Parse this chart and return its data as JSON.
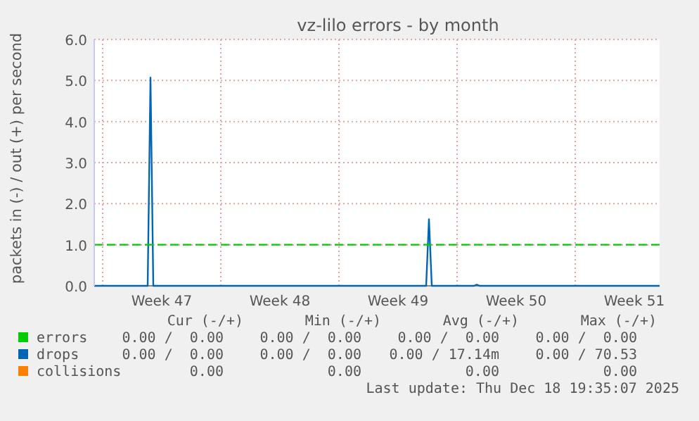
{
  "chart_data": {
    "type": "line",
    "title": "vz-lilo errors - by month",
    "ylabel": "packets in (-) / out (+) per second",
    "categories": [
      null,
      null,
      null,
      null,
      null,
      null,
      null,
      null,
      null,
      null,
      null,
      null,
      null,
      null,
      null,
      null,
      null,
      null,
      null,
      null,
      null,
      null,
      null,
      null,
      "Week 47",
      null,
      null,
      null,
      null,
      null,
      null,
      null,
      null,
      null,
      null,
      null,
      null,
      null,
      null,
      null,
      null,
      null,
      null,
      null,
      null,
      null,
      null,
      null,
      null,
      null,
      null,
      null,
      null,
      null,
      null,
      null,
      null,
      null,
      null,
      null,
      null,
      null,
      null,
      null,
      null,
      null,
      "Week 48",
      null,
      null,
      null,
      null,
      null,
      null,
      null,
      null,
      null,
      null,
      null,
      null,
      null,
      null,
      null,
      null,
      null,
      null,
      null,
      null,
      null,
      null,
      null,
      null,
      null,
      null,
      null,
      null,
      null,
      null,
      null,
      null,
      null,
      null,
      null,
      null,
      null,
      null,
      null,
      null,
      null,
      "Week 49",
      null,
      null,
      null,
      null,
      null,
      null,
      null,
      null,
      null,
      null,
      null,
      null,
      null,
      null,
      null,
      null,
      null,
      null,
      null,
      null,
      null,
      null,
      null,
      null,
      null,
      null,
      null,
      null,
      null,
      null,
      null,
      null,
      null,
      null,
      null,
      null,
      null,
      null,
      null,
      null,
      null,
      "Week 50",
      null,
      null,
      null,
      null,
      null,
      null,
      null,
      null,
      null,
      null,
      null,
      null,
      null,
      null,
      null,
      null,
      null,
      null,
      null,
      null,
      null,
      null,
      null,
      null,
      null,
      null,
      null,
      null,
      null,
      null,
      null,
      null,
      null,
      null,
      null,
      null,
      null,
      null,
      null,
      null,
      null,
      "Week 51",
      null,
      null,
      null,
      null,
      null,
      null,
      null,
      null,
      null
    ],
    "ylim": [
      0,
      6
    ],
    "yticks": [
      {
        "value": 0,
        "label": "0.0"
      },
      {
        "value": 1,
        "label": "1.0"
      },
      {
        "value": 2,
        "label": "2.0"
      },
      {
        "value": 3,
        "label": "3.0"
      },
      {
        "value": 4,
        "label": "4.0"
      },
      {
        "value": 5,
        "label": "5.0"
      },
      {
        "value": 6,
        "label": "6.0"
      }
    ],
    "grid": true,
    "legend": "bottom",
    "marker": "none",
    "line_style": "solid",
    "series": [
      {
        "name": "errors",
        "color": "#00cc00",
        "values": [
          null,
          null,
          null,
          null,
          null,
          null,
          null,
          null,
          null,
          null,
          null,
          null,
          null,
          null,
          null,
          null,
          null,
          null,
          null,
          null,
          null,
          null,
          null,
          null,
          null,
          null,
          null,
          null,
          null,
          null,
          null,
          null,
          null,
          null,
          null,
          null,
          null,
          null,
          null,
          null,
          null,
          null,
          null,
          null,
          null,
          null,
          null,
          null,
          null,
          null,
          null,
          null,
          null,
          null,
          null,
          null,
          null,
          null,
          null,
          null,
          null,
          null,
          null,
          null,
          null,
          null,
          null,
          null,
          null,
          null,
          null,
          null,
          null,
          null,
          null,
          null,
          null,
          null,
          null,
          null,
          null,
          null,
          null,
          null,
          null,
          null,
          null,
          null,
          null,
          null,
          null,
          null,
          null,
          null,
          null,
          null,
          null,
          null,
          null,
          null,
          null,
          null,
          null,
          null,
          null,
          null,
          null,
          null,
          null,
          null,
          null,
          null,
          null,
          null,
          null,
          null,
          null,
          null,
          null,
          null,
          null,
          null,
          null,
          null,
          null,
          null,
          null,
          null,
          null,
          null,
          null,
          null,
          null,
          null,
          null,
          null,
          null,
          null,
          null,
          null,
          null,
          null,
          null,
          null,
          null,
          null,
          null,
          null,
          null,
          null,
          null,
          null,
          null,
          null,
          null,
          null,
          null,
          null,
          null,
          null,
          null,
          null,
          null,
          null,
          null,
          null,
          null,
          null,
          null,
          null,
          null,
          null,
          null,
          null,
          null,
          null,
          null,
          null,
          null,
          null,
          null,
          null,
          null,
          null,
          null,
          null,
          null,
          null,
          null,
          null,
          null,
          null,
          null,
          null,
          null,
          null,
          null,
          null,
          null,
          null,
          null,
          null
        ]
      },
      {
        "name": "drops",
        "color": "#0066b3",
        "values": [
          0,
          0,
          0,
          0,
          0,
          0,
          0,
          0,
          0,
          0,
          0,
          0,
          0,
          0,
          0,
          0,
          0,
          0,
          0,
          0,
          5.07,
          0,
          0,
          0,
          0,
          0,
          0,
          0,
          0,
          0,
          0,
          0,
          0,
          0,
          0,
          0,
          0,
          0,
          0,
          0,
          0,
          0,
          0,
          0,
          0,
          0,
          0,
          0,
          0,
          0,
          0,
          0,
          0,
          0,
          0,
          0,
          0,
          0,
          0,
          0,
          0,
          0,
          0,
          0,
          0,
          0,
          0,
          0,
          0,
          0,
          0,
          0,
          0,
          0,
          0,
          0,
          0,
          0,
          0,
          0,
          0,
          0,
          0,
          0,
          0,
          0,
          0,
          0,
          0,
          0,
          0,
          0,
          0,
          0,
          0,
          0,
          0,
          0,
          0,
          0,
          0,
          0,
          0,
          0,
          0,
          0,
          0,
          0,
          0,
          0,
          0,
          0,
          0,
          0,
          0,
          0,
          0,
          0,
          0,
          1.62,
          0,
          0,
          0,
          0,
          0,
          0,
          0,
          0,
          0,
          0,
          0,
          0,
          0,
          0,
          0,
          0,
          0.03,
          0,
          0,
          0,
          0,
          0,
          0,
          0,
          0,
          0,
          0,
          0,
          0,
          0,
          0,
          0,
          0,
          0,
          0,
          0,
          0,
          0,
          0,
          0,
          0,
          0,
          0,
          0,
          0,
          0,
          0,
          0,
          0,
          0,
          0,
          0,
          0,
          0,
          0,
          0,
          0,
          0,
          0,
          0,
          0,
          0,
          0,
          0,
          0,
          0,
          0,
          0,
          0,
          0,
          0,
          0,
          0,
          0,
          0,
          0,
          0,
          0,
          0,
          0,
          0,
          0
        ]
      },
      {
        "name": "collisions",
        "color": "#ff8000",
        "values": [
          null,
          null,
          null,
          null,
          null,
          null,
          null,
          null,
          null,
          null,
          null,
          null,
          null,
          null,
          null,
          null,
          null,
          null,
          null,
          null,
          null,
          null,
          null,
          null,
          null,
          null,
          null,
          null,
          null,
          null,
          null,
          null,
          null,
          null,
          null,
          null,
          null,
          null,
          null,
          null,
          null,
          null,
          null,
          null,
          null,
          null,
          null,
          null,
          null,
          null,
          null,
          null,
          null,
          null,
          null,
          null,
          null,
          null,
          null,
          null,
          null,
          null,
          null,
          null,
          null,
          null,
          null,
          null,
          null,
          null,
          null,
          null,
          null,
          null,
          null,
          null,
          null,
          null,
          null,
          null,
          null,
          null,
          null,
          null,
          null,
          null,
          null,
          null,
          null,
          null,
          null,
          null,
          null,
          null,
          null,
          null,
          null,
          null,
          null,
          null,
          null,
          null,
          null,
          null,
          null,
          null,
          null,
          null,
          null,
          null,
          null,
          null,
          null,
          null,
          null,
          null,
          null,
          null,
          null,
          null,
          null,
          null,
          null,
          null,
          null,
          null,
          null,
          null,
          null,
          null,
          null,
          null,
          null,
          null,
          null,
          null,
          null,
          null,
          null,
          null,
          null,
          null,
          null,
          null,
          null,
          null,
          null,
          null,
          null,
          null,
          null,
          null,
          null,
          null,
          null,
          null,
          null,
          null,
          null,
          null,
          null,
          null,
          null,
          null,
          null,
          null,
          null,
          null,
          null,
          null,
          null,
          null,
          null,
          null,
          null,
          null,
          null,
          null,
          null,
          null,
          null,
          null,
          null,
          null,
          null,
          null,
          null,
          null,
          null,
          null,
          null,
          null,
          null,
          null,
          null,
          null,
          null,
          null,
          null,
          null,
          null,
          null
        ]
      }
    ],
    "ref_lines": [
      {
        "axis": "y",
        "value": 1,
        "color": "#00cc00",
        "line_style": "dashed"
      }
    ],
    "annotations": [
      "Cur (-/+)",
      "Min (-/+)",
      "Avg (-/+)",
      "Max (-/+)",
      "0.00 /  0.00",
      "0.00 /  0.00",
      "0.00 /  0.00",
      "0.00 /  0.00",
      "0.00 /  0.00",
      "0.00 /  0.00",
      "0.00 / 17.14m",
      "0.00 / 70.53",
      "0.00",
      "0.00",
      "0.00",
      "0.00",
      "Last update: Thu Dec 18 19:35:07 2025"
    ]
  }
}
